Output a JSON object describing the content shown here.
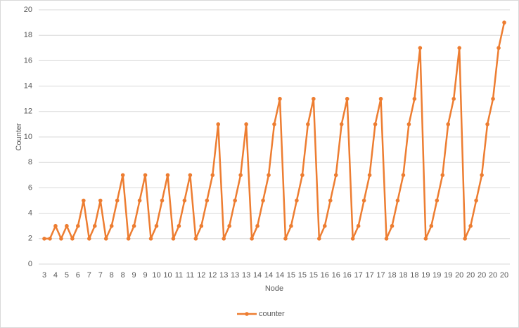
{
  "chart_data": {
    "type": "line",
    "x_label": "Node",
    "y_label": "Counter",
    "categories": [
      3,
      null,
      4,
      null,
      5,
      null,
      6,
      null,
      7,
      null,
      7,
      null,
      8,
      null,
      8,
      null,
      9,
      null,
      9,
      null,
      10,
      null,
      10,
      null,
      11,
      null,
      11,
      null,
      12,
      null,
      12,
      null,
      13,
      null,
      13,
      null,
      13,
      null,
      14,
      null,
      14,
      null,
      14,
      null,
      15,
      null,
      15,
      null,
      15,
      null,
      16,
      null,
      16,
      null,
      16,
      null,
      17,
      null,
      17,
      null,
      17,
      null,
      18,
      null,
      18,
      null,
      18,
      null,
      19,
      null,
      19,
      null,
      19,
      null,
      20,
      null,
      20,
      null,
      20,
      null,
      20,
      null,
      20
    ],
    "series": [
      {
        "name": "counter",
        "color": "#ed7d31",
        "values": [
          2,
          2,
          3,
          2,
          3,
          2,
          3,
          5,
          2,
          3,
          5,
          2,
          3,
          5,
          7,
          2,
          3,
          5,
          7,
          2,
          3,
          5,
          7,
          2,
          3,
          5,
          7,
          2,
          3,
          5,
          7,
          11,
          2,
          3,
          5,
          7,
          11,
          2,
          3,
          5,
          7,
          11,
          13,
          2,
          3,
          5,
          7,
          11,
          13,
          2,
          3,
          5,
          7,
          11,
          13,
          2,
          3,
          5,
          7,
          11,
          13,
          2,
          3,
          5,
          7,
          11,
          13,
          17,
          2,
          3,
          5,
          7,
          11,
          13,
          17,
          2,
          3,
          5,
          7,
          11,
          13,
          17,
          19
        ]
      }
    ],
    "ylim": [
      0,
      20
    ],
    "yticks": [
      0,
      2,
      4,
      6,
      8,
      10,
      12,
      14,
      16,
      18,
      20
    ],
    "grid": true,
    "legend": "bottom"
  }
}
